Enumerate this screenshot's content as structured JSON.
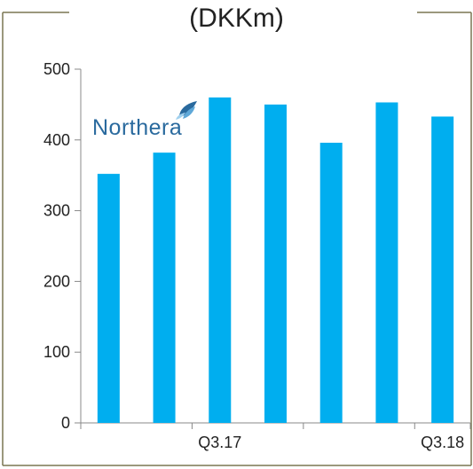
{
  "chart_data": {
    "type": "bar",
    "title": "(DKKm)",
    "categories": [
      "",
      "",
      "Q3.17",
      "",
      "",
      "",
      "Q3.18"
    ],
    "values": [
      352,
      382,
      460,
      450,
      396,
      453,
      433
    ],
    "ylim": [
      0,
      500
    ],
    "yticks": [
      0,
      100,
      200,
      300,
      400,
      500
    ],
    "grid": false,
    "bar_color": "#00AEEF"
  },
  "logo": {
    "text": "Northera"
  },
  "colors": {
    "frame": "#7a7752",
    "axis": "#888888",
    "logo": "#2a6a9e"
  }
}
